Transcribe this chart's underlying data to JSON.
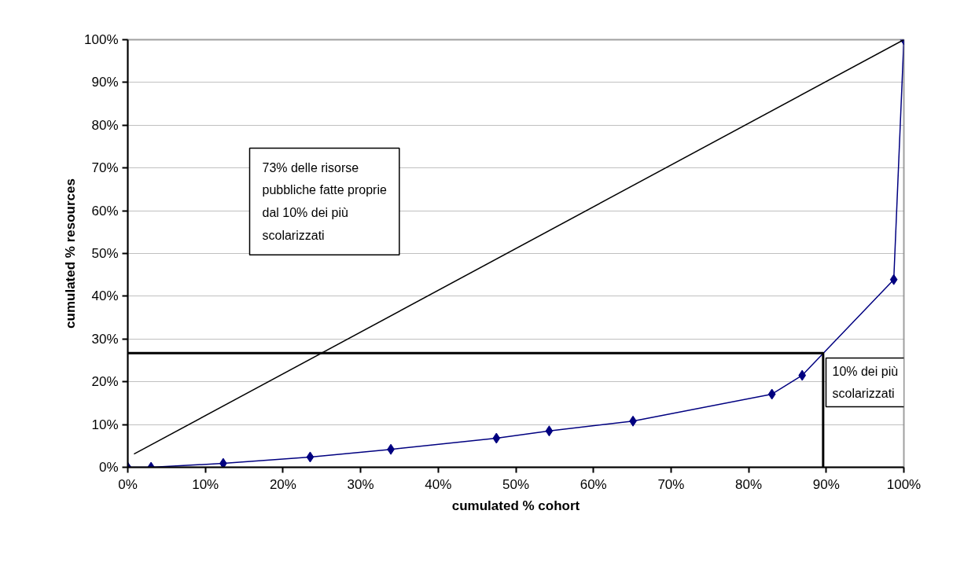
{
  "chart_data": {
    "type": "line",
    "xlabel": "cumulated % cohort",
    "ylabel": "cumulated % resources",
    "xlim": [
      0,
      100
    ],
    "ylim": [
      0,
      100
    ],
    "xticks": [
      {
        "value": 0,
        "label": "0%"
      },
      {
        "value": 10,
        "label": "10%"
      },
      {
        "value": 20,
        "label": "20%"
      },
      {
        "value": 30,
        "label": "30%"
      },
      {
        "value": 40,
        "label": "40%"
      },
      {
        "value": 50,
        "label": "50%"
      },
      {
        "value": 60,
        "label": "60%"
      },
      {
        "value": 70,
        "label": "70%"
      },
      {
        "value": 80,
        "label": "80%"
      },
      {
        "value": 90,
        "label": "90%"
      },
      {
        "value": 100,
        "label": "100%"
      }
    ],
    "yticks": [
      {
        "value": 0,
        "label": "0%"
      },
      {
        "value": 10,
        "label": "10%"
      },
      {
        "value": 20,
        "label": "20%"
      },
      {
        "value": 30,
        "label": "30%"
      },
      {
        "value": 40,
        "label": "40%"
      },
      {
        "value": 50,
        "label": "50%"
      },
      {
        "value": 60,
        "label": "60%"
      },
      {
        "value": 70,
        "label": "70%"
      },
      {
        "value": 80,
        "label": "80%"
      },
      {
        "value": 90,
        "label": "90%"
      },
      {
        "value": 100,
        "label": "100%"
      }
    ],
    "grid": "y",
    "series": [
      {
        "color": "#000080",
        "marker": "diamond",
        "x": [
          0,
          3.0,
          12.3,
          23.5,
          33.9,
          47.5,
          54.3,
          65.1,
          83.0,
          86.9,
          98.7,
          100
        ],
        "values": [
          0,
          0,
          0.9,
          2.4,
          4.2,
          6.8,
          8.5,
          10.8,
          17.1,
          21.5,
          43.9,
          100
        ]
      },
      {
        "color": "#000000",
        "marker": "none",
        "x": [
          0.8,
          100
        ],
        "values": [
          3.1,
          100
        ]
      },
      {
        "color": "#000000",
        "marker": "none",
        "x": [
          0,
          89.6,
          89.6
        ],
        "values": [
          26.7,
          26.7,
          0
        ]
      }
    ],
    "annotations": [
      "73% delle risorse\npubbliche fatte proprie\ndal 10% dei più\nscolarizzati",
      "10% dei più\nscolarizzati"
    ]
  }
}
